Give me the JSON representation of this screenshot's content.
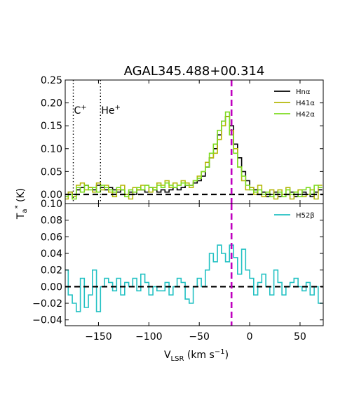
{
  "chart_data": {
    "type": "line",
    "title": "AGAL345.488+00.314",
    "xlabel": "V_LSR (km s^-1)",
    "ylabel": "T_a* (K)",
    "xlim": [
      -183,
      73
    ],
    "x_ticks": [
      "−150",
      "−100",
      "−50",
      "0",
      "50"
    ],
    "x_tick_values": [
      -150,
      -100,
      -50,
      0,
      50
    ],
    "reference_velocity": -18,
    "reference_color": "#bf00bf",
    "panels": [
      {
        "name": "top",
        "ylim": [
          -0.02,
          0.25
        ],
        "y_ticks": [
          "0.00",
          "0.05",
          "0.10",
          "0.15",
          "0.20",
          "0.25"
        ],
        "y_tick_values": [
          0,
          0.05,
          0.1,
          0.15,
          0.2,
          0.25
        ],
        "annotations": [
          {
            "label": "C",
            "sup": "+",
            "x": -175
          },
          {
            "label": "He",
            "sup": "+",
            "x": -148
          }
        ],
        "x": [
          -182,
          -178,
          -174,
          -170,
          -166,
          -162,
          -158,
          -154,
          -150,
          -146,
          -142,
          -138,
          -134,
          -130,
          -126,
          -122,
          -118,
          -114,
          -110,
          -106,
          -102,
          -98,
          -94,
          -90,
          -86,
          -82,
          -78,
          -74,
          -70,
          -66,
          -62,
          -58,
          -54,
          -50,
          -46,
          -42,
          -38,
          -34,
          -30,
          -26,
          -22,
          -18,
          -14,
          -10,
          -6,
          -2,
          2,
          6,
          10,
          14,
          18,
          22,
          26,
          30,
          34,
          38,
          42,
          46,
          50,
          54,
          58,
          62,
          66,
          70
        ],
        "series": [
          {
            "name": "Hnα",
            "color": "#000000",
            "values": [
              0.0,
              0.005,
              0.0,
              0.01,
              0.015,
              0.02,
              0.015,
              0.01,
              0.02,
              0.015,
              0.01,
              0.015,
              0.01,
              0.005,
              0.01,
              0.0,
              0.005,
              0.0,
              0.01,
              0.01,
              0.005,
              0.015,
              0.01,
              0.005,
              0.01,
              0.005,
              0.01,
              0.015,
              0.01,
              0.015,
              0.02,
              0.02,
              0.025,
              0.03,
              0.04,
              0.06,
              0.08,
              0.1,
              0.13,
              0.16,
              0.17,
              0.15,
              0.11,
              0.08,
              0.05,
              0.03,
              0.015,
              0.01,
              0.0,
              0.005,
              -0.005,
              0.0,
              0.005,
              -0.005,
              0.0,
              0.0,
              0.005,
              -0.005,
              0.0,
              0.005,
              0.0,
              -0.005,
              0.005,
              0.01
            ]
          },
          {
            "name": "H41α",
            "color": "#b5b80a",
            "values": [
              -0.01,
              0.005,
              -0.005,
              0.02,
              0.025,
              0.01,
              0.015,
              0.005,
              0.025,
              0.01,
              0.02,
              0.005,
              -0.005,
              0.01,
              0.02,
              0.0,
              -0.01,
              0.015,
              0.01,
              0.02,
              0.02,
              0.005,
              0.015,
              0.025,
              0.02,
              0.03,
              0.015,
              0.025,
              0.02,
              0.03,
              0.025,
              0.015,
              0.03,
              0.04,
              0.05,
              0.07,
              0.08,
              0.09,
              0.12,
              0.15,
              0.17,
              0.14,
              0.1,
              0.06,
              0.03,
              0.01,
              0.015,
              0.0,
              0.02,
              -0.005,
              0.0,
              0.01,
              -0.01,
              0.01,
              0.0,
              0.015,
              -0.01,
              0.005,
              0.01,
              -0.005,
              0.0,
              0.01,
              -0.01,
              0.02
            ]
          },
          {
            "name": "H42α",
            "color": "#7ddb1f",
            "values": [
              -0.005,
              0.0,
              -0.01,
              0.015,
              0.005,
              0.02,
              0.01,
              0.015,
              0.005,
              0.02,
              0.015,
              0.01,
              0.005,
              0.015,
              0.01,
              -0.005,
              0.01,
              0.005,
              0.015,
              0.01,
              0.02,
              0.015,
              0.01,
              0.02,
              0.015,
              0.025,
              0.02,
              0.015,
              0.02,
              0.025,
              0.02,
              0.02,
              0.03,
              0.035,
              0.05,
              0.06,
              0.09,
              0.11,
              0.14,
              0.16,
              0.18,
              0.13,
              0.09,
              0.06,
              0.04,
              0.02,
              0.01,
              0.005,
              0.01,
              0.0,
              0.005,
              -0.005,
              0.0,
              0.005,
              -0.005,
              0.01,
              0.0,
              0.005,
              -0.005,
              0.01,
              0.015,
              0.0,
              0.02,
              0.015
            ]
          }
        ]
      },
      {
        "name": "bottom",
        "ylim": [
          -0.047,
          0.1
        ],
        "y_ticks": [
          "−0.04",
          "−0.02",
          "0.00",
          "0.02",
          "0.04",
          "0.06",
          "0.08",
          "0.10"
        ],
        "y_tick_values": [
          -0.04,
          -0.02,
          0,
          0.02,
          0.04,
          0.06,
          0.08,
          0.1
        ],
        "annotations": [],
        "x": [
          -182,
          -178,
          -174,
          -170,
          -166,
          -162,
          -158,
          -154,
          -150,
          -146,
          -142,
          -138,
          -134,
          -130,
          -126,
          -122,
          -118,
          -114,
          -110,
          -106,
          -102,
          -98,
          -94,
          -90,
          -86,
          -82,
          -78,
          -74,
          -70,
          -66,
          -62,
          -58,
          -54,
          -50,
          -46,
          -42,
          -38,
          -34,
          -30,
          -26,
          -22,
          -18,
          -14,
          -10,
          -6,
          -2,
          2,
          6,
          10,
          14,
          18,
          22,
          26,
          30,
          34,
          38,
          42,
          46,
          50,
          54,
          58,
          62,
          66,
          70
        ],
        "series": [
          {
            "name": "H52β",
            "color": "#22c1c3",
            "values": [
              0.02,
              -0.01,
              -0.02,
              -0.03,
              0.01,
              -0.025,
              -0.01,
              0.02,
              -0.03,
              0.0,
              0.01,
              0.005,
              -0.005,
              0.01,
              -0.01,
              0.005,
              0.0,
              0.01,
              -0.005,
              0.015,
              0.005,
              -0.01,
              0.0,
              -0.005,
              -0.005,
              0.005,
              -0.01,
              0.0,
              0.01,
              0.005,
              -0.015,
              -0.02,
              0.0,
              0.01,
              0.0,
              0.02,
              0.04,
              0.03,
              0.05,
              0.04,
              0.03,
              0.05,
              0.035,
              0.015,
              0.045,
              0.02,
              0.01,
              -0.01,
              0.005,
              0.015,
              0.0,
              -0.01,
              0.02,
              0.005,
              -0.01,
              0.0,
              0.005,
              0.01,
              0.0,
              -0.005,
              0.005,
              -0.01,
              0.0,
              -0.02
            ]
          }
        ]
      }
    ]
  }
}
